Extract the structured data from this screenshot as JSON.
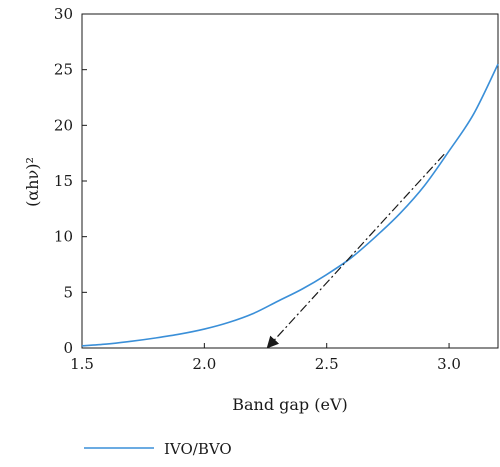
{
  "chart_data": {
    "type": "line",
    "xlabel": "Band gap (eV)",
    "ylabel": "(αhν)²",
    "xlim": [
      1.5,
      3.2
    ],
    "ylim": [
      0,
      30
    ],
    "x_ticks": [
      1.5,
      2.0,
      2.5,
      3.0
    ],
    "x_tick_labels": [
      "1.5",
      "2.0",
      "2.5",
      "3.0"
    ],
    "y_ticks": [
      0,
      5,
      10,
      15,
      20,
      25,
      30
    ],
    "y_tick_labels": [
      "0",
      "5",
      "10",
      "15",
      "20",
      "25",
      "30"
    ],
    "grid": false,
    "legend_position": "bottom-left",
    "series": [
      {
        "name": "IVO/BVO",
        "color": "#3a8fd8",
        "x": [
          1.5,
          1.6,
          1.7,
          1.8,
          1.9,
          2.0,
          2.1,
          2.2,
          2.3,
          2.4,
          2.5,
          2.6,
          2.7,
          2.8,
          2.9,
          3.0,
          3.1,
          3.2
        ],
        "y": [
          0.2,
          0.35,
          0.6,
          0.9,
          1.25,
          1.7,
          2.3,
          3.1,
          4.2,
          5.3,
          6.6,
          8.1,
          10.0,
          12.1,
          14.6,
          17.7,
          21.0,
          25.5
        ]
      }
    ],
    "tangent_line": {
      "color": "#1a1a1a",
      "style": "dash-dot",
      "x": [
        2.98,
        2.26
      ],
      "y": [
        17.4,
        0.0
      ]
    }
  }
}
